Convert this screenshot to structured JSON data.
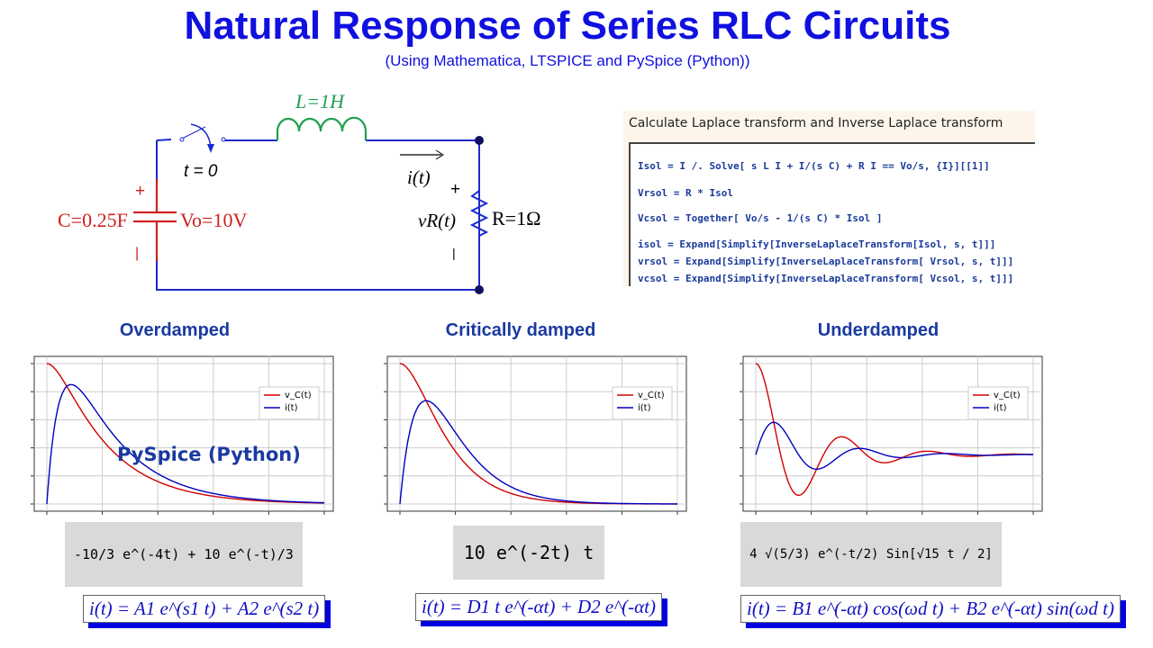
{
  "title": "Natural Response of Series RLC Circuits",
  "subtitle": "(Using Mathematica, LTSPICE and PySpice (Python))",
  "circuit": {
    "inductor": "L=1H",
    "switch": "t = 0",
    "current": "i(t)",
    "capacitor": "C=0.25F",
    "initial_voltage": "Vo=10V",
    "resistor": "R=1Ω",
    "resistor_voltage": "vR(t)",
    "plus": "+",
    "minus": "|"
  },
  "code": {
    "heading": "Calculate Laplace transform and Inverse Laplace transform",
    "lines": [
      "Isol = I /. Solve[ s L I + I/(s C) + R I == Vo/s, {I}][[1]]",
      "Vrsol = R * Isol",
      "Vcsol = Together[ Vo/s - 1/(s C) * Isol ]",
      "isol = Expand[Simplify[InverseLaplaceTransform[Isol, s, t]]]",
      "vrsol = Expand[Simplify[InverseLaplaceTransform[ Vrsol, s, t]]]",
      "vcsol = Expand[Simplify[InverseLaplaceTransform[ Vcsol, s, t]]]"
    ]
  },
  "sections": [
    {
      "label": "Overdamped",
      "result": "-10/3 e^(-4t) + 10 e^(-t)/3",
      "general": "i(t) = A1 e^(s1 t) + A2 e^(s2 t)",
      "overlay": "PySpice (Python)"
    },
    {
      "label": "Critically damped",
      "result": "10 e^(-2t) t",
      "general": "i(t) = D1 t e^(-αt) + D2 e^(-αt)"
    },
    {
      "label": "Underdamped",
      "result": "4 √(5/3) e^(-t/2) Sin[√15 t / 2]",
      "general": "i(t) = B1 e^(-αt) cos(ωd t) + B2 e^(-αt) sin(ωd t)"
    }
  ],
  "chart_data": [
    {
      "type": "line",
      "series": [
        {
          "name": "v_C(t)",
          "color": "#d00000"
        },
        {
          "name": "i(t)",
          "color": "#0000c0"
        }
      ],
      "grid": true,
      "legend": "top-right"
    },
    {
      "type": "line",
      "series": [
        {
          "name": "v_C(t)",
          "color": "#d00000"
        },
        {
          "name": "i(t)",
          "color": "#0000c0"
        }
      ],
      "grid": true,
      "legend": "top-right"
    },
    {
      "type": "line",
      "series": [
        {
          "name": "v_C(t)",
          "color": "#d00000"
        },
        {
          "name": "i(t)",
          "color": "#0000c0"
        }
      ],
      "grid": true,
      "legend": "top-right"
    }
  ]
}
